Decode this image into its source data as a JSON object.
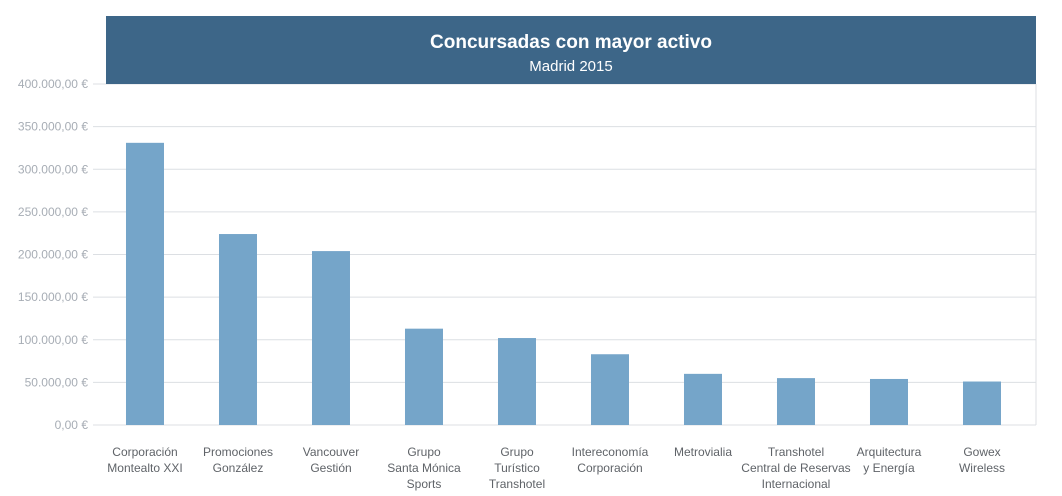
{
  "colors": {
    "header_bg": "#3d6688",
    "bar": "#75a5c9",
    "grid": "#dcdfe3",
    "axis_text": "#a7adb5",
    "label_text": "#5f6368"
  },
  "chart_data": {
    "type": "bar",
    "title": "Concursadas con mayor activo",
    "subtitle": "Madrid 2015",
    "xlabel": "",
    "ylabel": "",
    "ylim": [
      0,
      400000
    ],
    "grid": true,
    "y_ticks": [
      "0,00 €",
      "50.000,00 €",
      "100.000,00 €",
      "150.000,00 €",
      "200.000,00 €",
      "250.000,00 €",
      "300.000,00 €",
      "350.000,00 €",
      "400.000,00 €"
    ],
    "categories": [
      [
        "Corporación",
        "Montealto XXI"
      ],
      [
        "Promociones",
        "González"
      ],
      [
        "Vancouver",
        "Gestión"
      ],
      [
        "Grupo",
        "Santa Mónica",
        "Sports"
      ],
      [
        "Grupo",
        "Turístico",
        "Transhotel"
      ],
      [
        "Intereconomía",
        "Corporación"
      ],
      [
        "Metrovialia"
      ],
      [
        "Transhotel",
        "Central de Reservas",
        "Internacional"
      ],
      [
        "Arquitectura",
        "y Energía"
      ],
      [
        "Gowex",
        "Wireless"
      ]
    ],
    "values": [
      331000,
      224000,
      204000,
      113000,
      102000,
      83000,
      60000,
      55000,
      54000,
      51000
    ]
  }
}
